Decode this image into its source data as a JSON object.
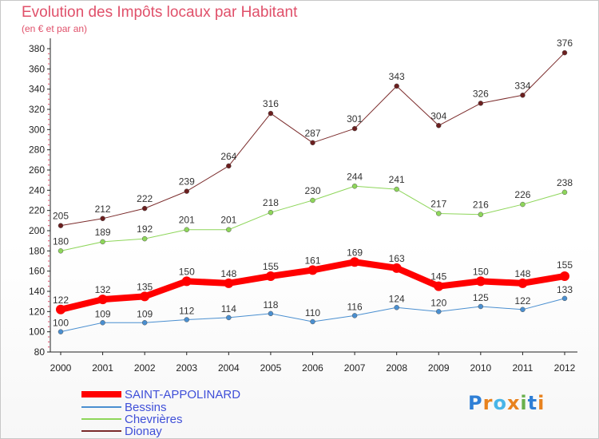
{
  "title": "Evolution des Impôts locaux par Habitant",
  "subtitle": "(en € et par an)",
  "logo": {
    "text": "Proxiti",
    "letters": [
      "P",
      "r",
      "o",
      "x",
      "i",
      "t",
      "i"
    ],
    "colors": [
      "#2f7fd6",
      "#e8821e",
      "#48b5e8",
      "#e8821e",
      "#6ab04c",
      "#2f7fd6",
      "#e8821e"
    ]
  },
  "chart_data": {
    "type": "line",
    "title": "Evolution des Impôts locaux par Habitant",
    "subtitle": "(en € et par an)",
    "xlabel": "",
    "ylabel": "",
    "ylim": [
      80,
      380
    ],
    "yticks": [
      80,
      100,
      120,
      140,
      160,
      180,
      200,
      220,
      240,
      260,
      280,
      300,
      320,
      340,
      360,
      380
    ],
    "x": [
      "2000",
      "2001",
      "2002",
      "2003",
      "2004",
      "2005",
      "2006",
      "2007",
      "2008",
      "2009",
      "2010",
      "2011",
      "2012"
    ],
    "grid": false,
    "legend_position": "bottom-left",
    "series": [
      {
        "name": "SAINT-APPOLINARD",
        "color": "#ff0000",
        "values": [
          122,
          132,
          135,
          150,
          148,
          155,
          161,
          169,
          163,
          145,
          150,
          148,
          155
        ]
      },
      {
        "name": "Bessins",
        "color": "#4a8fd0",
        "values": [
          100,
          109,
          109,
          112,
          114,
          118,
          110,
          116,
          124,
          120,
          125,
          122,
          133
        ]
      },
      {
        "name": "Chevrières",
        "color": "#8ed65a",
        "values": [
          180,
          189,
          192,
          201,
          201,
          218,
          230,
          244,
          241,
          217,
          216,
          226,
          238
        ]
      },
      {
        "name": "Dionay",
        "color": "#7a2a2a",
        "values": [
          205,
          212,
          222,
          239,
          264,
          316,
          287,
          301,
          343,
          304,
          326,
          334,
          376
        ]
      }
    ]
  }
}
